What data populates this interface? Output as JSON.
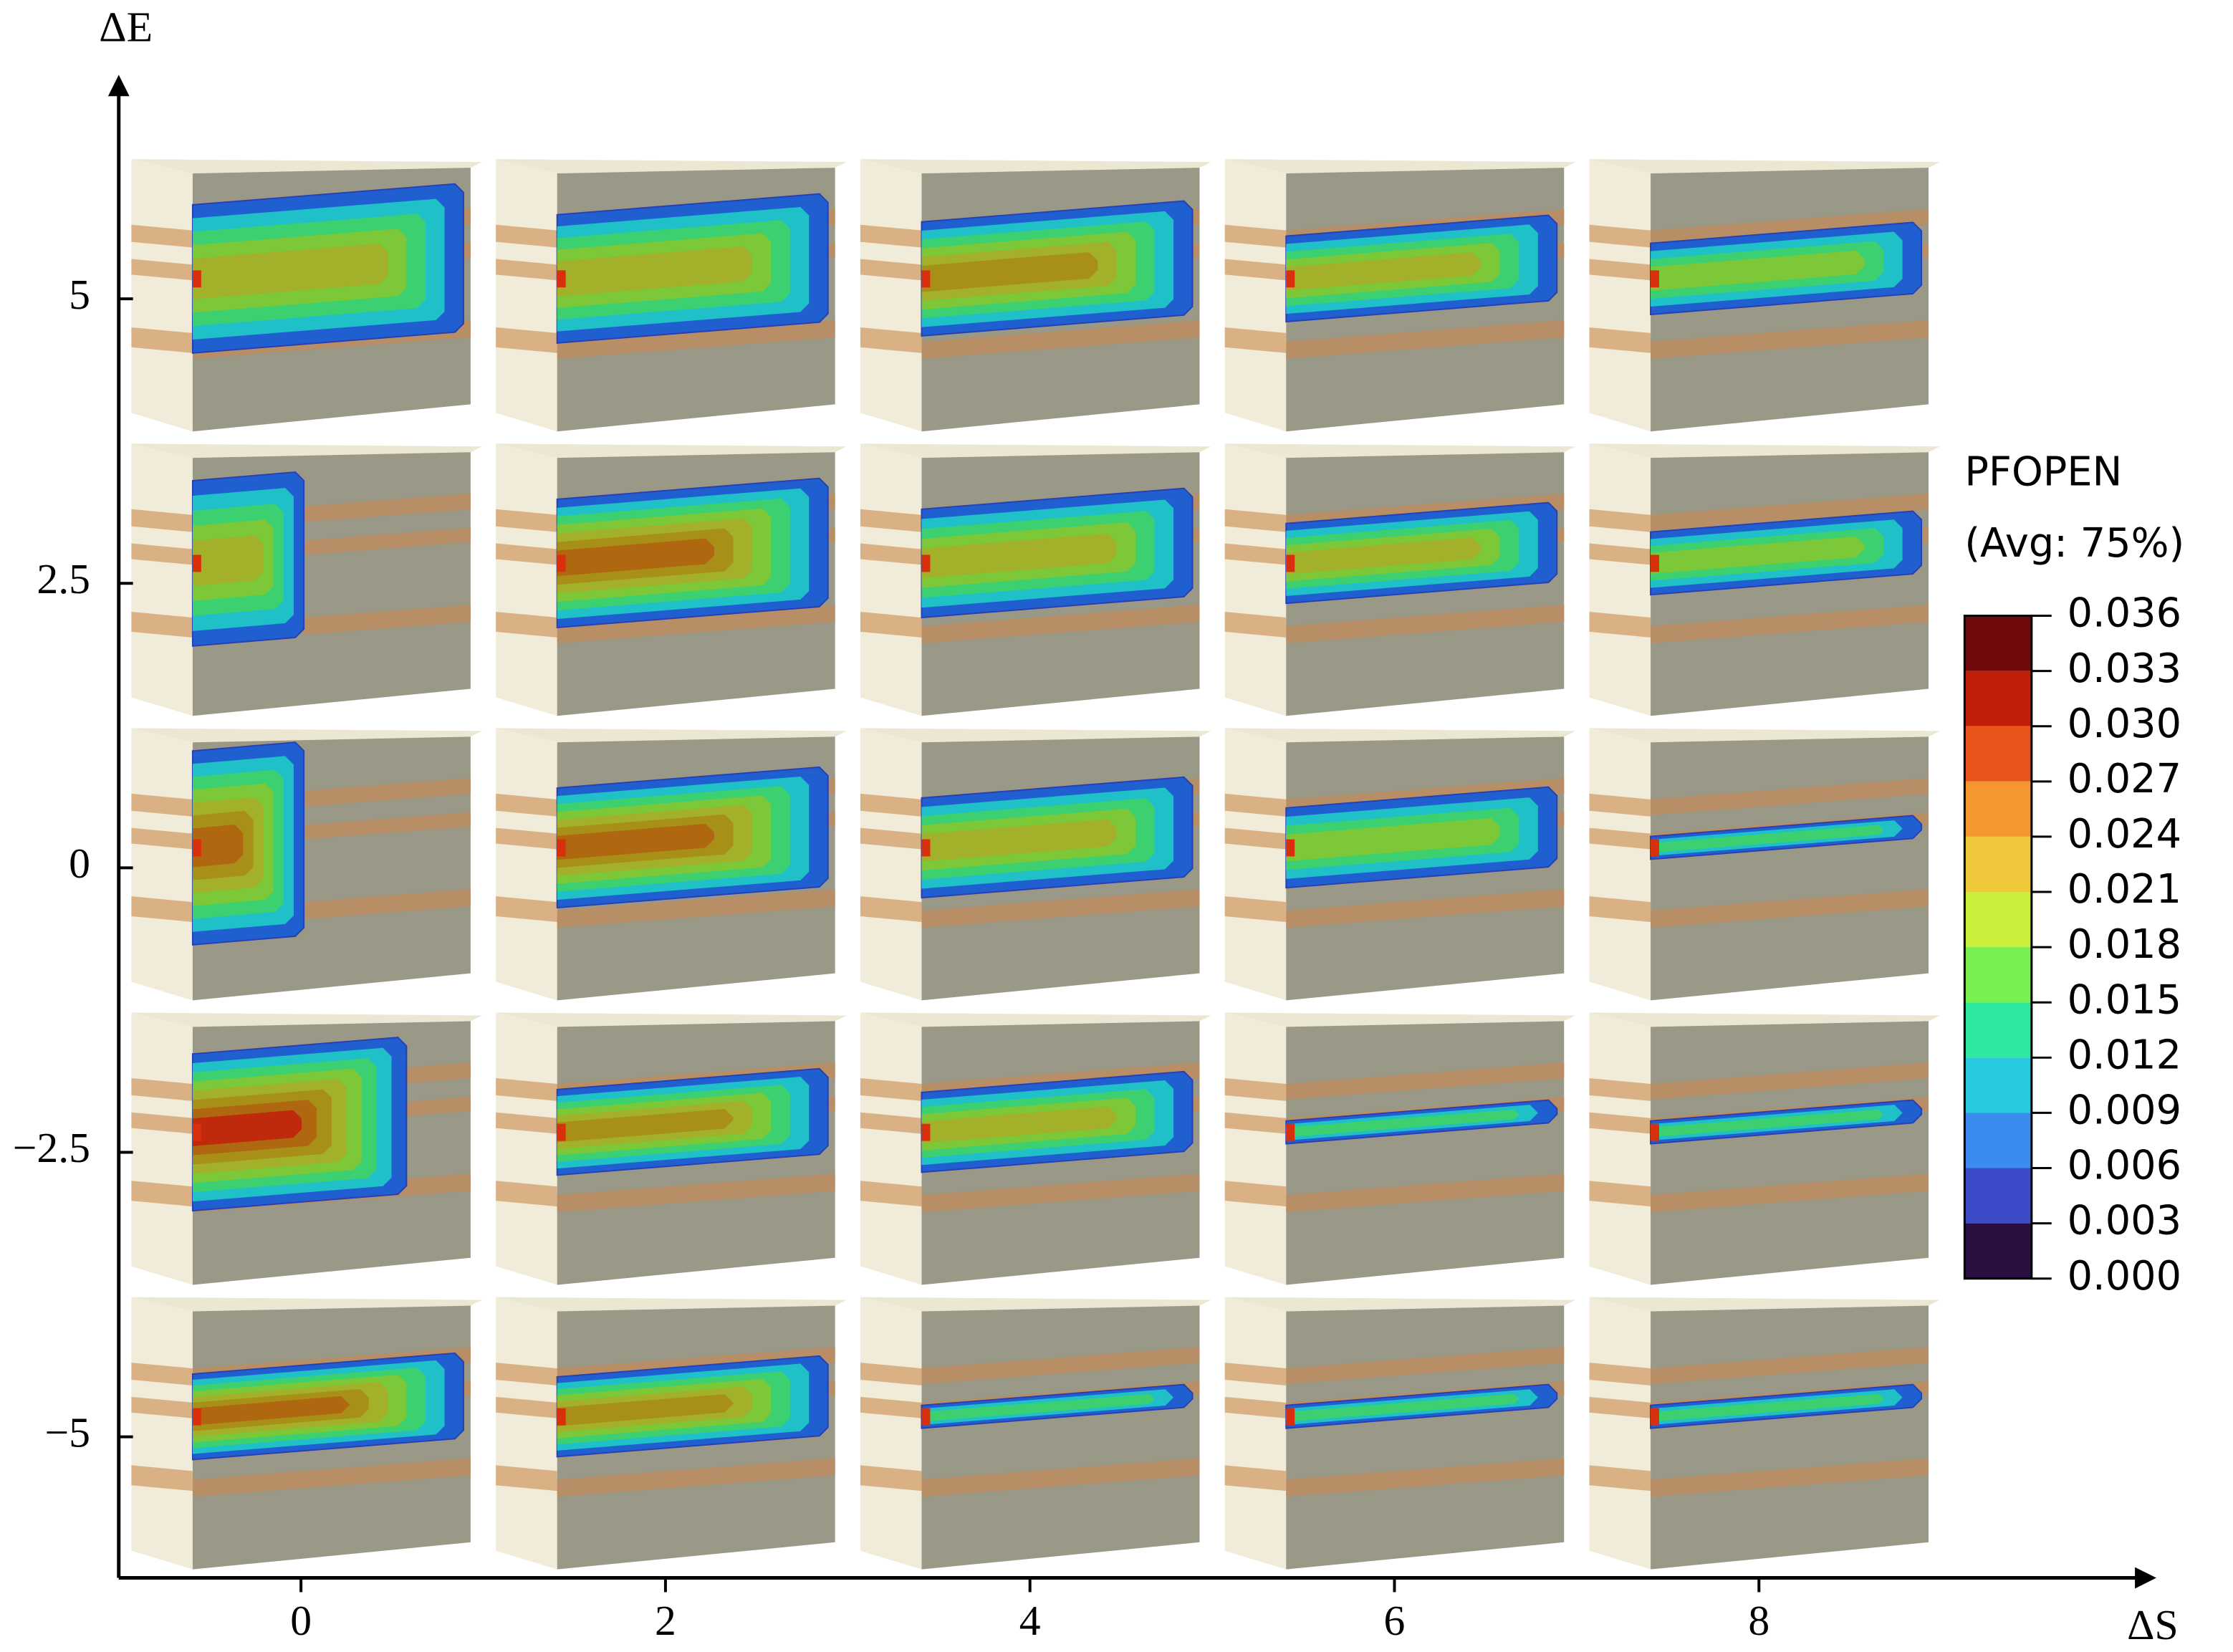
{
  "chart_data": {
    "type": "small-multiples",
    "xlabel": "ΔS",
    "ylabel": "ΔE",
    "xlim": [
      -1,
      10.2
    ],
    "ylim": [
      -6.24,
      7
    ],
    "xticks": [
      0,
      2,
      4,
      6,
      8
    ],
    "yticks": [
      5,
      2.5,
      0,
      {
        "value": -2.5,
        "label": "−2.5"
      },
      {
        "value": -5,
        "label": "−5"
      }
    ],
    "colorbar": {
      "title": "PFOPEN",
      "subtitle": "(Avg: 75%)",
      "ticks": [
        0.036,
        0.033,
        {
          "value": 0.03,
          "label": "0.030"
        },
        0.027,
        0.024,
        0.021,
        0.018,
        0.015,
        0.012,
        0.009,
        0.006,
        0.003,
        {
          "value": 0,
          "label": "0.000"
        }
      ],
      "colors": [
        "#6e0a0a",
        "#c0200a",
        "#e8541a",
        "#f5962e",
        "#f0c83c",
        "#c8f03c",
        "#78f050",
        "#2ee8a0",
        "#28c8e0",
        "#3c8cf0",
        "#3c4cc8",
        "#2a1040"
      ]
    }
  }
}
